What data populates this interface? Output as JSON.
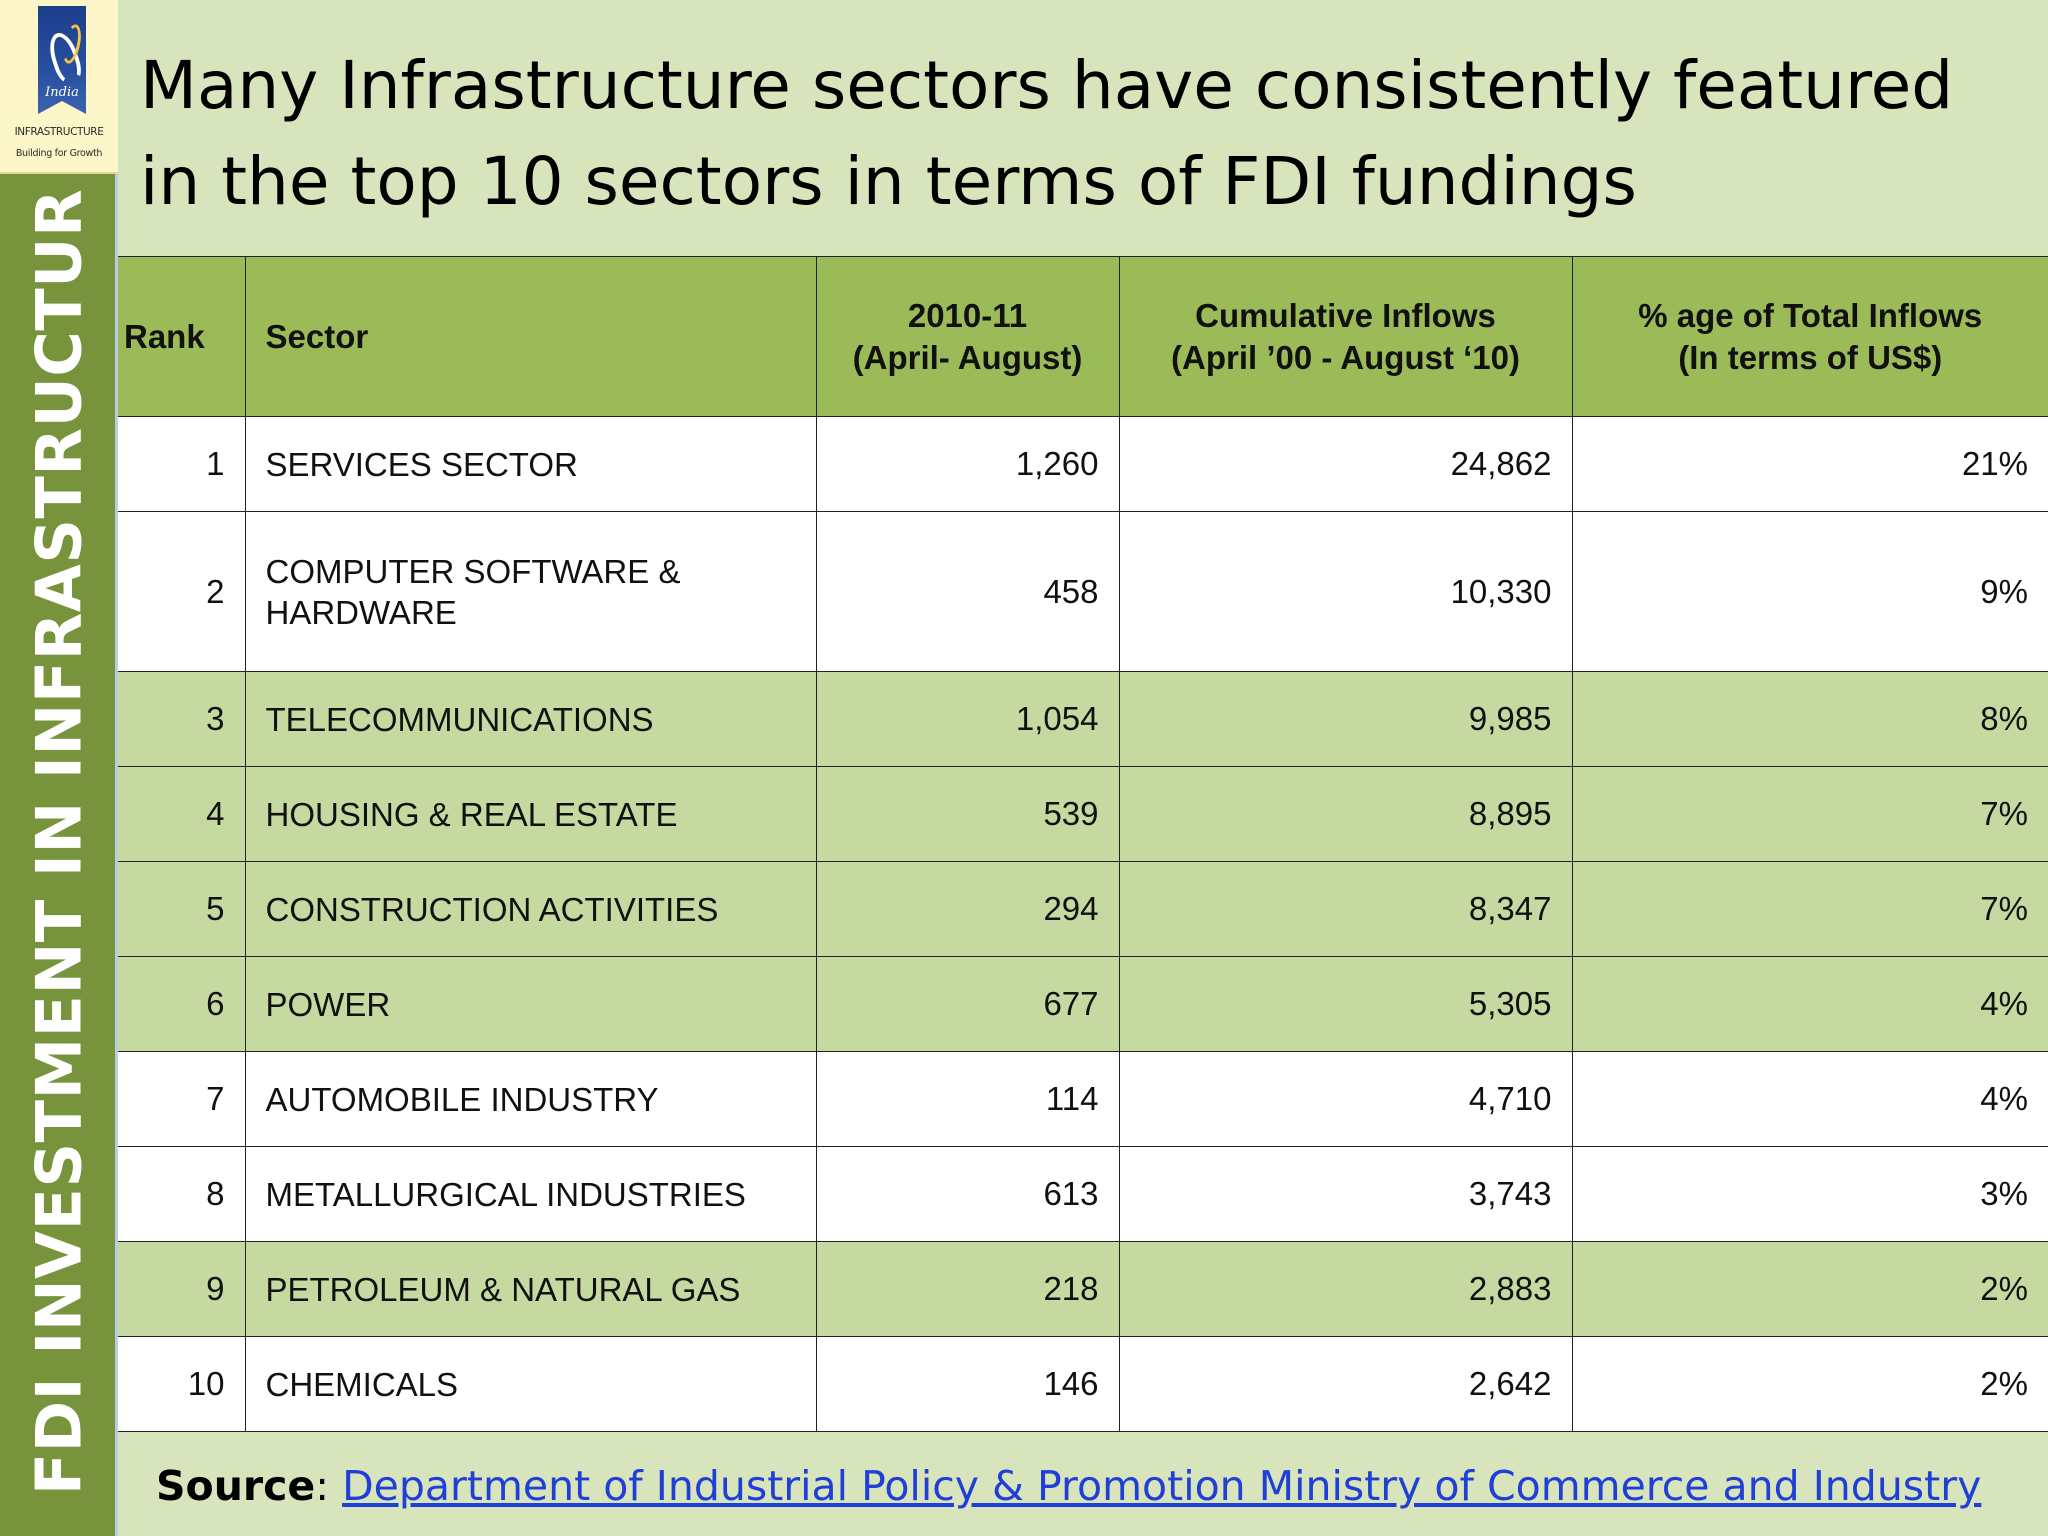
{
  "sidebar": {
    "logo": {
      "emblem_text": "India",
      "line1": "INFRASTRUCTURE",
      "line2": "Building for Growth"
    },
    "vertical_title": "FDI INVESTMENT IN INFRASTRUCTUR"
  },
  "title": "Many Infrastructure sectors have consistently featured in the top 10 sectors in terms of FDI fundings",
  "table": {
    "headers": {
      "rank": "Rank",
      "sector": "Sector",
      "period_line1": "2010-11",
      "period_line2": "(April- August)",
      "cumulative_line1": "Cumulative Inflows",
      "cumulative_line2": "(April ’00 - August ‘10)",
      "share_line1": "% age of Total Inflows",
      "share_line2": "(In terms of US$)"
    },
    "rows": [
      {
        "rank": "1",
        "sector": "SERVICES SECTOR",
        "period": "1,260",
        "cumulative": "24,862",
        "share": "21%"
      },
      {
        "rank": "2",
        "sector_line1": "COMPUTER SOFTWARE &",
        "sector_line2": "HARDWARE",
        "period": "458",
        "cumulative": "10,330",
        "share": "9%"
      },
      {
        "rank": "3",
        "sector": "TELECOMMUNICATIONS",
        "period": "1,054",
        "cumulative": "9,985",
        "share": "8%"
      },
      {
        "rank": "4",
        "sector": "HOUSING & REAL ESTATE",
        "period": "539",
        "cumulative": "8,895",
        "share": "7%"
      },
      {
        "rank": "5",
        "sector": "CONSTRUCTION ACTIVITIES",
        "period": "294",
        "cumulative": "8,347",
        "share": "7%"
      },
      {
        "rank": "6",
        "sector": "POWER",
        "period": "677",
        "cumulative": "5,305",
        "share": "4%"
      },
      {
        "rank": "7",
        "sector": "AUTOMOBILE INDUSTRY",
        "period": "114",
        "cumulative": "4,710",
        "share": "4%"
      },
      {
        "rank": "8",
        "sector": "METALLURGICAL INDUSTRIES",
        "period": "613",
        "cumulative": "3,743",
        "share": "3%"
      },
      {
        "rank": "9",
        "sector": "PETROLEUM & NATURAL GAS",
        "period": "218",
        "cumulative": "2,883",
        "share": "2%"
      },
      {
        "rank": "10",
        "sector": "CHEMICALS",
        "period": "146",
        "cumulative": "2,642",
        "share": "2%"
      }
    ]
  },
  "source": {
    "label": "Source",
    "separator": ": ",
    "link_text": "Department of Industrial Policy & Promotion Ministry of Commerce and Industry"
  },
  "colors": {
    "background": "#d8e4bc",
    "sidebar": "#77933c",
    "header_fill": "#9bbb59",
    "row_dark": "#c6d9a0",
    "row_light": "#ffffff",
    "link": "#1f3fd6"
  }
}
